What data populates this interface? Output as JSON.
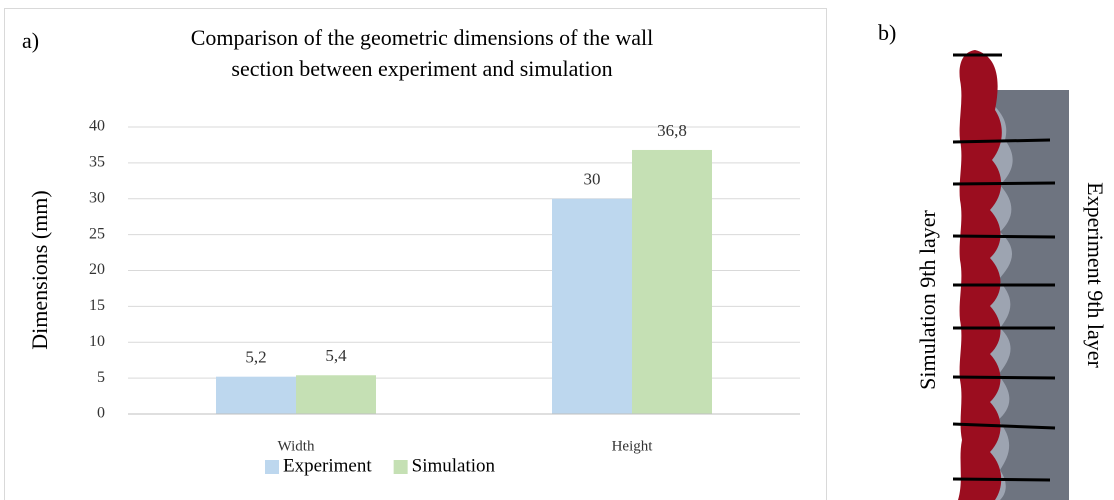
{
  "chart_data": {
    "type": "bar",
    "panel_label": "a)",
    "title": [
      "Comparison of the geometric dimensions of the wall",
      "section between experiment and simulation"
    ],
    "ylabel": "Dimensions (mm)",
    "categories": [
      "Width",
      "Height"
    ],
    "series": [
      {
        "name": "Experiment",
        "color": "#bdd7ee",
        "values": [
          5.2,
          30
        ],
        "value_labels": [
          "5,2",
          "30"
        ]
      },
      {
        "name": "Simulation",
        "color": "#c5e0b4",
        "values": [
          5.4,
          36.8
        ],
        "value_labels": [
          "5,4",
          "36,8"
        ]
      }
    ],
    "ylim": [
      0,
      40
    ],
    "yticks": [
      0,
      5,
      10,
      15,
      20,
      25,
      30,
      35,
      40
    ],
    "grid": true,
    "legend": "bottom"
  },
  "image_panel": {
    "panel_label": "b)",
    "left_label": "Simulation 9th layer",
    "right_label": "Experiment 9th layer"
  }
}
